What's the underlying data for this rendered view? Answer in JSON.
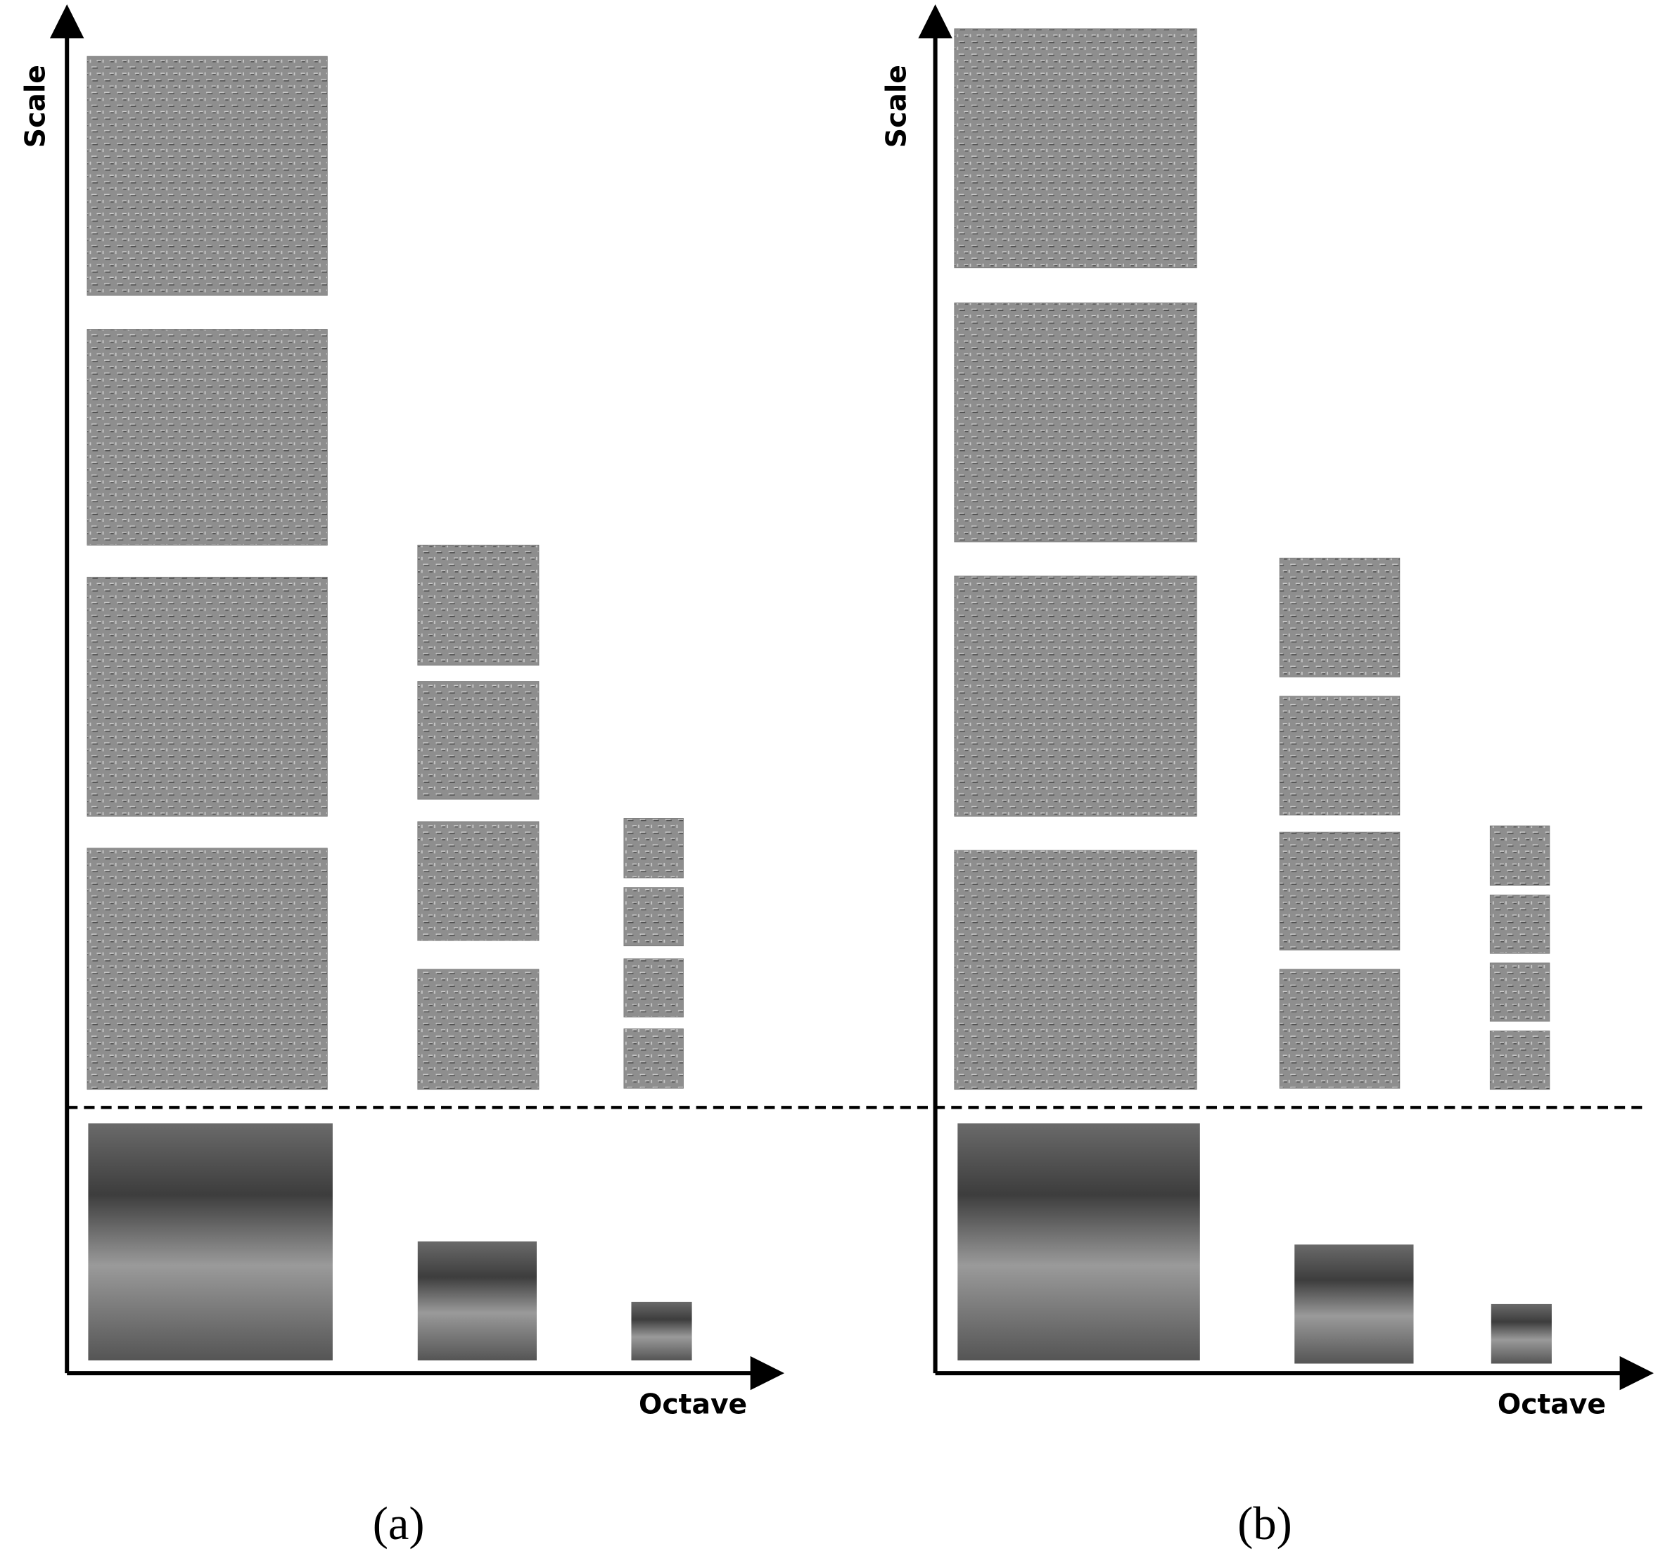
{
  "panels": [
    {
      "y_axis_label": "Scale",
      "x_axis_label": "Octave",
      "caption": "(a)"
    },
    {
      "y_axis_label": "Scale",
      "x_axis_label": "Octave",
      "caption": "(b)"
    }
  ]
}
